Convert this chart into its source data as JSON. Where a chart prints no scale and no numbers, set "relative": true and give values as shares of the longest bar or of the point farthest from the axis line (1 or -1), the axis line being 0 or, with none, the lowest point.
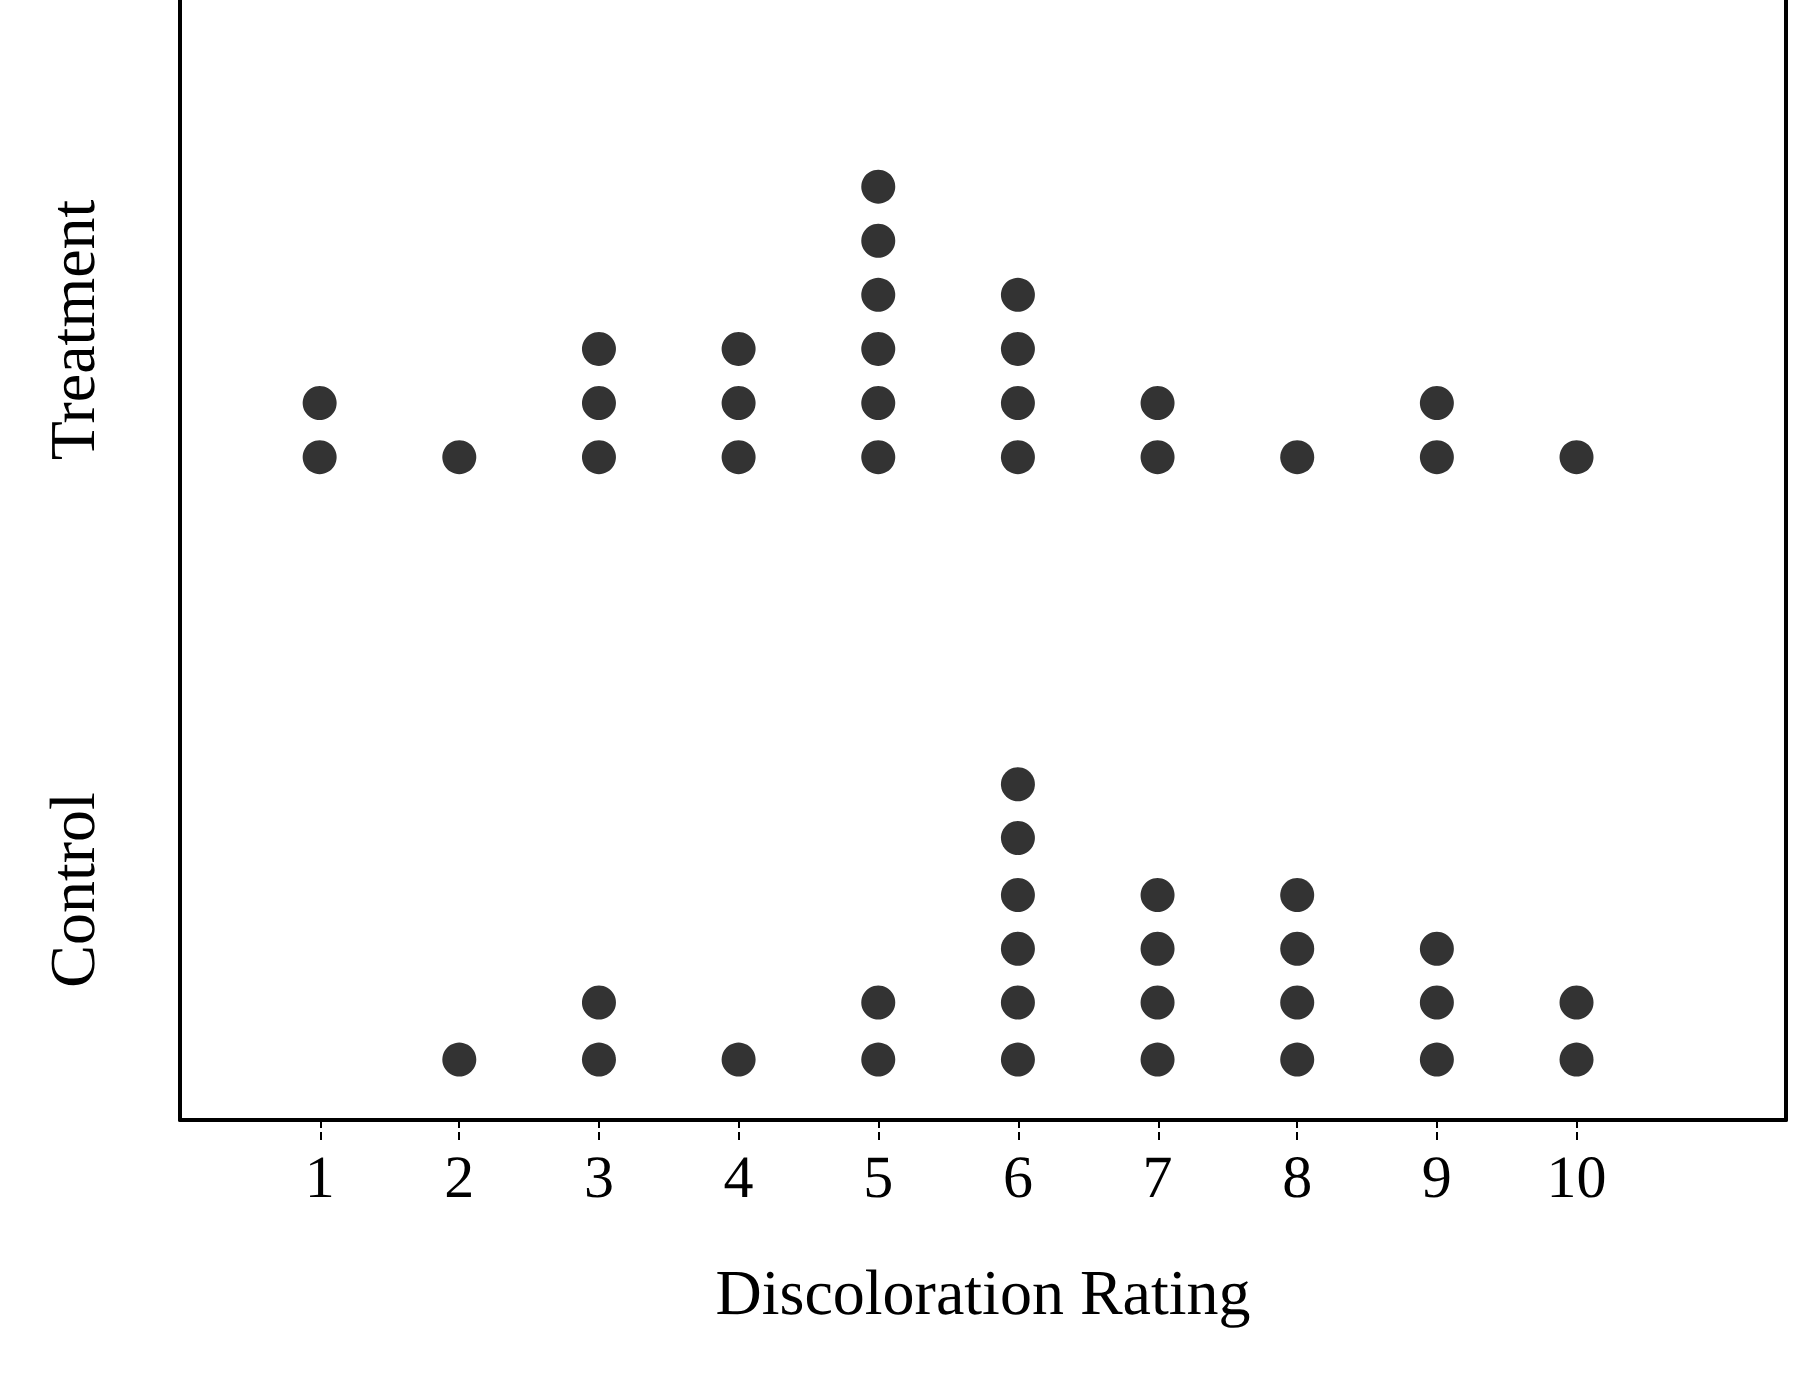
{
  "chart_data": [
    {
      "type": "scatter",
      "ylabel": "Treatment",
      "relative": true,
      "x": [
        1,
        1,
        2,
        3,
        3,
        3,
        4,
        4,
        4,
        5,
        5,
        5,
        5,
        5,
        5,
        6,
        6,
        6,
        6,
        7,
        7,
        8,
        9,
        9,
        10
      ],
      "values": [
        0,
        0.2,
        0,
        0,
        0.2,
        0.4,
        0,
        0.2,
        0.4,
        0,
        0.2,
        0.4,
        0.6,
        0.8,
        1,
        0,
        0.2,
        0.4,
        0.6,
        0,
        0.2,
        0,
        0,
        0.2,
        0
      ],
      "color": "#000000",
      "xlim": [
        0,
        11.5
      ],
      "marker": "circle",
      "grid": false,
      "tick_labels": false
    },
    {
      "type": "scatter",
      "ylabel": "Control",
      "xlabel": "Discoloration Rating",
      "relative": true,
      "x": [
        2,
        3,
        3,
        4,
        5,
        5,
        6,
        6,
        6,
        6,
        6,
        6,
        7,
        7,
        7,
        7,
        8,
        8,
        8,
        8,
        9,
        9,
        9,
        10,
        10
      ],
      "values": [
        0.18,
        0.18,
        0.35,
        0.18,
        0.18,
        0.35,
        0.18,
        0.35,
        0.51,
        0.67,
        0.84,
        1,
        0.18,
        0.35,
        0.51,
        0.67,
        0.18,
        0.35,
        0.51,
        0.67,
        0.18,
        0.35,
        0.51,
        0.18,
        0.35
      ],
      "color": "#000000",
      "xlim": [
        0,
        11.5
      ],
      "xticks": [
        1,
        2,
        3,
        4,
        5,
        6,
        7,
        8,
        9,
        10
      ],
      "marker": "circle",
      "grid": false,
      "tick_labels": "x"
    }
  ]
}
